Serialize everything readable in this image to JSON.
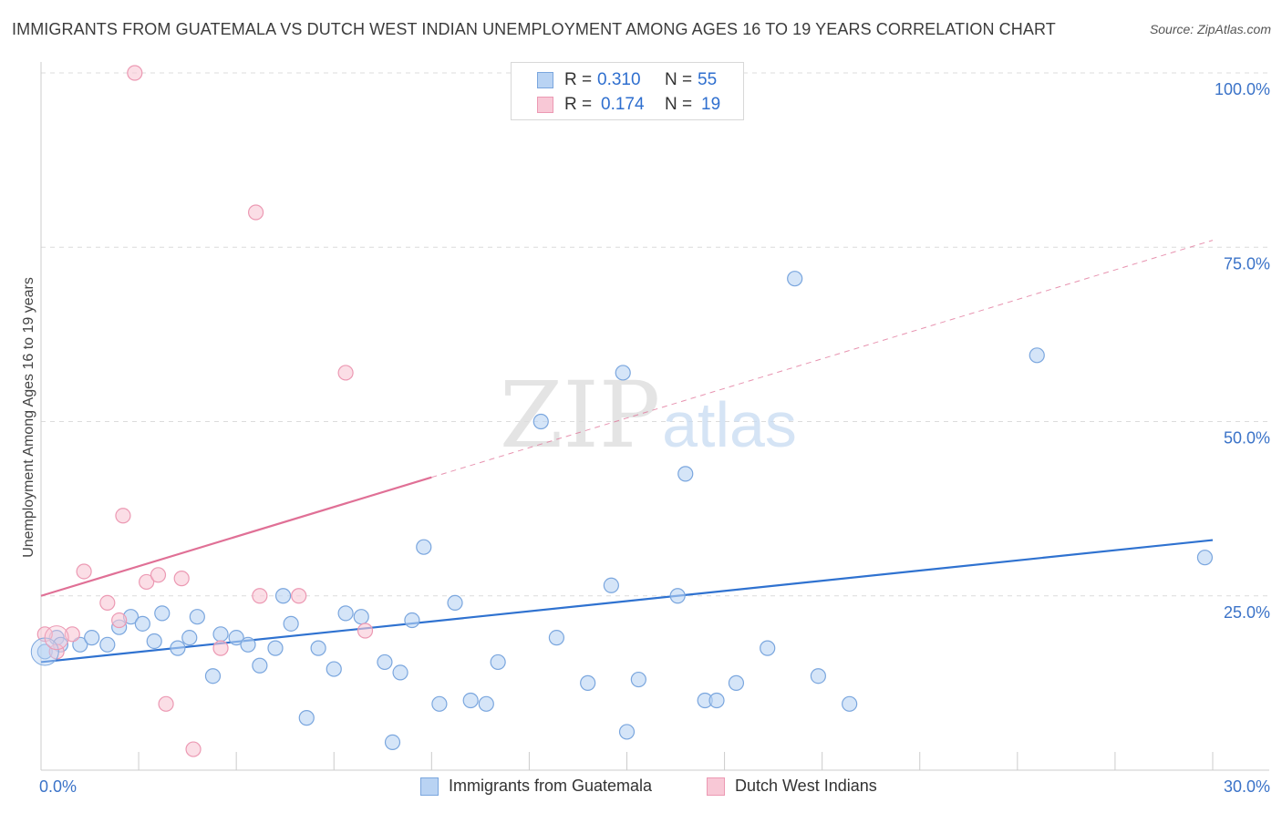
{
  "title": "IMMIGRANTS FROM GUATEMALA VS DUTCH WEST INDIAN UNEMPLOYMENT AMONG AGES 16 TO 19 YEARS CORRELATION CHART",
  "source": "Source: ZipAtlas.com",
  "watermark": {
    "zip": "ZIP",
    "atlas": "atlas"
  },
  "legend_top": [
    {
      "r_label": "R =",
      "r_value": "0.310",
      "n_label": "N =",
      "n_value": "55"
    },
    {
      "r_label": "R =",
      "r_value": "0.174",
      "n_label": "N =",
      "n_value": "19"
    }
  ],
  "legend_bottom": [
    "Immigrants from Guatemala",
    "Dutch West Indians"
  ],
  "colors": {
    "blue_fill": "#b9d3f3",
    "blue_stroke": "#7aa6de",
    "blue_line": "#2f72d0",
    "pink_fill": "#f8c8d6",
    "pink_stroke": "#ec99b3",
    "pink_line": "#e07096",
    "axis_text": "#3b73c8",
    "grid": "#dcdcdc"
  },
  "chart_data": {
    "type": "scatter",
    "title": "IMMIGRANTS FROM GUATEMALA VS DUTCH WEST INDIAN UNEMPLOYMENT AMONG AGES 16 TO 19 YEARS CORRELATION CHART",
    "xlabel": "",
    "ylabel": "Unemployment Among Ages 16 to 19 years",
    "xlim": [
      0,
      30
    ],
    "ylim": [
      0,
      100
    ],
    "x_tick_labels": [
      "0.0%",
      "30.0%"
    ],
    "y_ticks": [
      25,
      50,
      75,
      100
    ],
    "y_tick_labels": [
      "25.0%",
      "50.0%",
      "75.0%",
      "100.0%"
    ],
    "grid": true,
    "series": [
      {
        "name": "Immigrants from Guatemala",
        "R": 0.31,
        "N": 55,
        "trend": {
          "x0": 0,
          "y0": 15.5,
          "x1": 30,
          "y1": 33
        },
        "points": [
          [
            0.1,
            17
          ],
          [
            0.4,
            19
          ],
          [
            0.5,
            18
          ],
          [
            1.0,
            18
          ],
          [
            1.3,
            19
          ],
          [
            1.7,
            18
          ],
          [
            2.0,
            20.5
          ],
          [
            2.3,
            22
          ],
          [
            2.6,
            21
          ],
          [
            2.9,
            18.5
          ],
          [
            3.1,
            22.5
          ],
          [
            3.5,
            17.5
          ],
          [
            3.8,
            19
          ],
          [
            4.0,
            22
          ],
          [
            4.4,
            13.5
          ],
          [
            4.6,
            19.5
          ],
          [
            5.0,
            19
          ],
          [
            5.3,
            18
          ],
          [
            5.6,
            15
          ],
          [
            6.0,
            17.5
          ],
          [
            6.2,
            25
          ],
          [
            6.4,
            21
          ],
          [
            6.8,
            7.5
          ],
          [
            7.1,
            17.5
          ],
          [
            7.5,
            14.5
          ],
          [
            7.8,
            22.5
          ],
          [
            8.2,
            22
          ],
          [
            8.8,
            15.5
          ],
          [
            9.0,
            4
          ],
          [
            9.2,
            14
          ],
          [
            9.5,
            21.5
          ],
          [
            9.8,
            32
          ],
          [
            10.2,
            9.5
          ],
          [
            10.6,
            24
          ],
          [
            11.0,
            10
          ],
          [
            11.4,
            9.5
          ],
          [
            11.7,
            15.5
          ],
          [
            12.8,
            50
          ],
          [
            13.2,
            19
          ],
          [
            14.0,
            12.5
          ],
          [
            14.6,
            26.5
          ],
          [
            14.9,
            57
          ],
          [
            15.0,
            5.5
          ],
          [
            15.3,
            13
          ],
          [
            16.3,
            25
          ],
          [
            16.5,
            42.5
          ],
          [
            17.0,
            10
          ],
          [
            17.3,
            10
          ],
          [
            17.8,
            12.5
          ],
          [
            18.6,
            17.5
          ],
          [
            19.3,
            70.5
          ],
          [
            19.9,
            13.5
          ],
          [
            20.7,
            9.5
          ],
          [
            25.5,
            59.5
          ],
          [
            29.8,
            30.5
          ]
        ]
      },
      {
        "name": "Dutch West Indians",
        "R": 0.174,
        "N": 19,
        "trend": {
          "x0": 0,
          "y0": 25,
          "x1": 10,
          "y1": 42,
          "dashed_to": {
            "x": 30,
            "y": 76
          }
        },
        "points": [
          [
            0.1,
            19.5
          ],
          [
            0.4,
            17
          ],
          [
            0.8,
            19.5
          ],
          [
            1.1,
            28.5
          ],
          [
            1.7,
            24
          ],
          [
            2.0,
            21.5
          ],
          [
            2.1,
            36.5
          ],
          [
            2.4,
            100
          ],
          [
            2.7,
            27
          ],
          [
            3.0,
            28
          ],
          [
            3.2,
            9.5
          ],
          [
            3.6,
            27.5
          ],
          [
            3.9,
            3
          ],
          [
            4.6,
            17.5
          ],
          [
            5.5,
            80
          ],
          [
            5.6,
            25
          ],
          [
            6.6,
            25
          ],
          [
            7.8,
            57
          ],
          [
            8.3,
            20
          ]
        ]
      }
    ]
  }
}
